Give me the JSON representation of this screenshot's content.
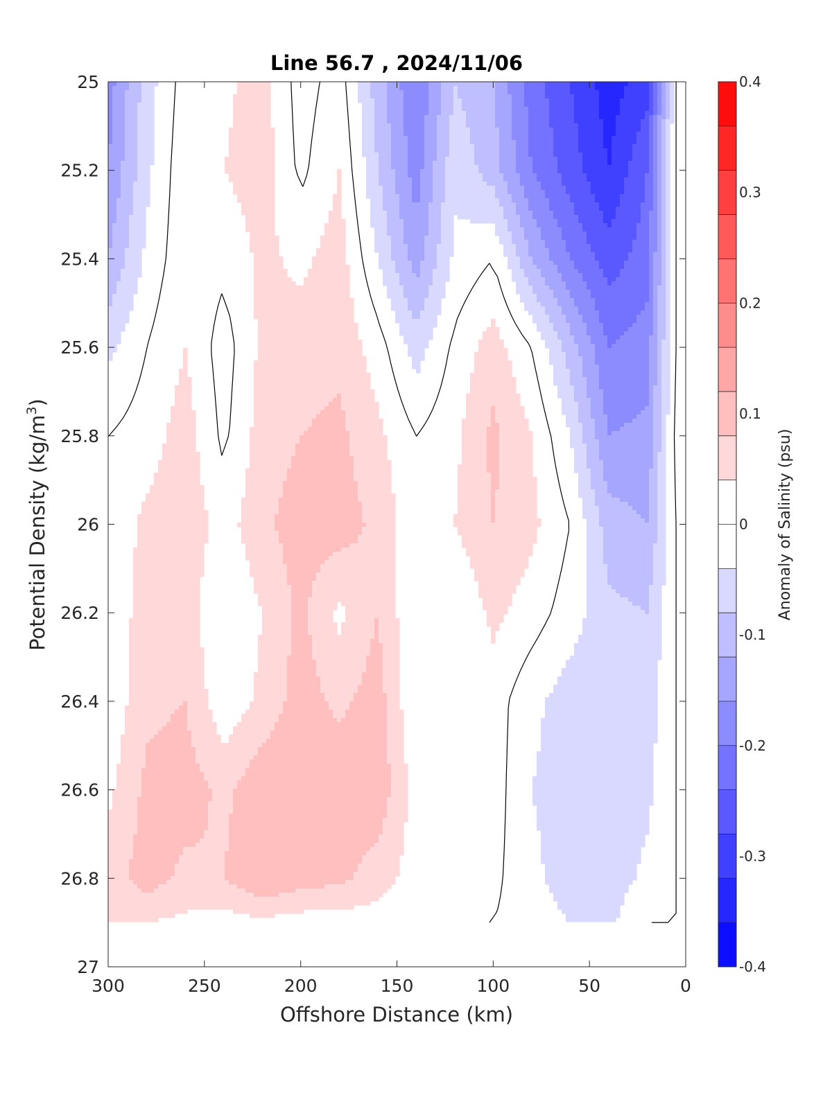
{
  "chart_data": {
    "type": "heatmap",
    "title": "Line 56.7 , 2024/11/06",
    "xlabel": "Offshore Distance (km)",
    "ylabel": "Potential Density (kg/m",
    "ylabel_superscript": "3",
    "ylabel_suffix": ")",
    "colorbar_label": "Anomaly of Salinity (psu)",
    "xlim": [
      300,
      0
    ],
    "ylim": [
      25,
      27
    ],
    "x_reversed": true,
    "y_reversed": true,
    "xticks": [
      300,
      250,
      200,
      150,
      100,
      50,
      0
    ],
    "xtick_labels": [
      "300",
      "250",
      "200",
      "150",
      "100",
      "50",
      "0"
    ],
    "yticks": [
      25,
      25.2,
      25.4,
      25.6,
      25.8,
      26,
      26.2,
      26.4,
      26.6,
      26.8,
      27
    ],
    "ytick_labels": [
      "25",
      "25.2",
      "25.4",
      "25.6",
      "25.8",
      "26",
      "26.2",
      "26.4",
      "26.6",
      "26.8",
      "27"
    ],
    "clim": [
      -0.4,
      0.4
    ],
    "colorbar_ticks": [
      0.4,
      0.3,
      0.2,
      0.1,
      0,
      -0.1,
      -0.2,
      -0.3,
      -0.4
    ],
    "colorbar_tick_labels": [
      "0.4",
      "0.3",
      "0.2",
      "0.1",
      "0",
      "-0.1",
      "-0.2",
      "-0.3",
      "-0.4"
    ],
    "colorbar_levels": 20,
    "colormap": {
      "low": "#0000ff",
      "mid": "#ffffff",
      "high": "#ff0000"
    },
    "contour_level": 0,
    "x": [
      300,
      280,
      260,
      240,
      220,
      200,
      180,
      160,
      140,
      120,
      100,
      80,
      60,
      40,
      20,
      5
    ],
    "y": [
      25,
      25.2,
      25.4,
      25.6,
      25.8,
      26,
      26.2,
      26.4,
      26.6,
      26.8,
      26.9
    ],
    "z": [
      [
        -0.18,
        -0.06,
        0.02,
        0.03,
        0.06,
        -0.02,
        0.02,
        -0.1,
        -0.2,
        -0.08,
        -0.12,
        -0.22,
        -0.28,
        -0.34,
        -0.3,
        0.0
      ],
      [
        -0.16,
        -0.05,
        0.03,
        0.04,
        0.06,
        -0.01,
        0.04,
        -0.08,
        -0.18,
        -0.05,
        -0.1,
        -0.2,
        -0.26,
        -0.32,
        -0.24,
        0.0
      ],
      [
        -0.12,
        -0.03,
        0.03,
        0.01,
        0.05,
        0.03,
        0.06,
        -0.04,
        -0.14,
        -0.03,
        0.0,
        -0.12,
        -0.2,
        -0.26,
        -0.22,
        0.0
      ],
      [
        -0.05,
        0.0,
        0.04,
        -0.02,
        0.05,
        0.06,
        0.07,
        0.02,
        -0.06,
        0.01,
        0.06,
        0.0,
        -0.1,
        -0.2,
        -0.18,
        0.0
      ],
      [
        0.0,
        0.02,
        0.06,
        -0.01,
        0.06,
        0.08,
        0.09,
        0.05,
        0.0,
        0.03,
        0.09,
        0.04,
        -0.04,
        -0.16,
        -0.15,
        0.01
      ],
      [
        0.01,
        0.05,
        0.07,
        0.02,
        0.07,
        0.1,
        0.1,
        0.07,
        0.01,
        0.04,
        0.08,
        0.05,
        0.0,
        -0.1,
        -0.12,
        0.0
      ],
      [
        0.01,
        0.06,
        0.06,
        0.0,
        0.04,
        0.09,
        0.03,
        0.08,
        0.0,
        0.0,
        0.05,
        0.02,
        -0.02,
        -0.07,
        -0.08,
        0.0
      ],
      [
        0.01,
        0.07,
        0.08,
        0.01,
        0.05,
        0.1,
        0.07,
        0.1,
        0.0,
        0.0,
        0.02,
        -0.03,
        -0.06,
        -0.07,
        -0.06,
        0.0
      ],
      [
        0.03,
        0.09,
        0.1,
        0.07,
        0.11,
        0.12,
        0.11,
        0.11,
        0.02,
        0.0,
        0.02,
        -0.04,
        -0.06,
        -0.07,
        -0.05,
        0.0
      ],
      [
        0.06,
        0.1,
        0.07,
        0.08,
        0.12,
        0.1,
        0.09,
        0.06,
        0.02,
        0.03,
        0.01,
        -0.03,
        -0.06,
        -0.06,
        -0.03,
        0.0
      ],
      [
        0.04,
        0.04,
        0.03,
        0.02,
        0.03,
        0.02,
        0.02,
        0.02,
        0.0,
        0.0,
        0.0,
        -0.02,
        -0.04,
        -0.05,
        0.0,
        0.0
      ]
    ]
  }
}
